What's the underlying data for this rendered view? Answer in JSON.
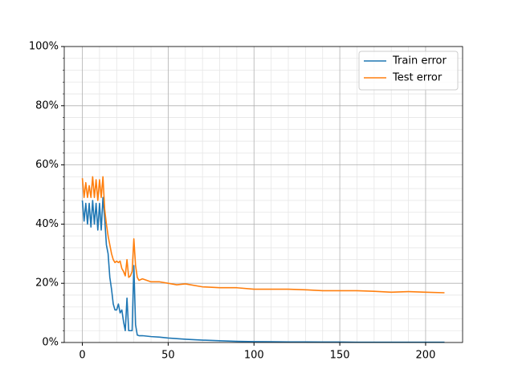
{
  "chart_data": {
    "type": "line",
    "x": [
      0,
      1,
      2,
      3,
      4,
      5,
      6,
      7,
      8,
      9,
      10,
      11,
      12,
      13,
      14,
      15,
      16,
      17,
      18,
      19,
      20,
      21,
      22,
      23,
      24,
      25,
      26,
      27,
      28,
      29,
      30,
      31,
      32,
      33,
      35,
      40,
      45,
      50,
      55,
      60,
      70,
      80,
      90,
      100,
      110,
      120,
      130,
      140,
      150,
      160,
      170,
      180,
      190,
      200,
      211
    ],
    "series": [
      {
        "name": "Train error",
        "color": "#1f77b4",
        "values": [
          48,
          41,
          47,
          40,
          47,
          39,
          48,
          40,
          47,
          38,
          47,
          38,
          49,
          42,
          33,
          30,
          22,
          18,
          13,
          11,
          11,
          13,
          10,
          11,
          7,
          4,
          15,
          4,
          4,
          4,
          26,
          6,
          2.5,
          2.3,
          2.3,
          2,
          1.8,
          1.5,
          1.3,
          1.1,
          0.8,
          0.6,
          0.4,
          0.3,
          0.25,
          0.2,
          0.2,
          0.15,
          0.15,
          0.1,
          0.1,
          0.1,
          0.1,
          0.1,
          0.1
        ]
      },
      {
        "name": "Test error",
        "color": "#ff7f0e",
        "values": [
          55.5,
          49,
          54,
          49,
          53,
          49,
          56,
          49,
          55,
          48,
          55,
          49,
          56,
          45,
          40,
          36,
          33,
          30,
          28,
          27,
          27.5,
          27,
          27.5,
          25,
          24,
          22.5,
          28,
          22,
          22.5,
          24,
          35,
          26,
          22,
          21,
          21.5,
          20.5,
          20.5,
          20,
          19.5,
          19.8,
          18.8,
          18.5,
          18.5,
          18,
          18,
          18,
          17.8,
          17.5,
          17.5,
          17.5,
          17.3,
          17,
          17.2,
          17,
          16.8
        ]
      }
    ],
    "xlim": [
      -10.55,
      221.55
    ],
    "xticks": [
      0,
      50,
      100,
      150,
      200
    ],
    "ylim": [
      0,
      100
    ],
    "yticks": [
      {
        "value": 0,
        "label": "0%"
      },
      {
        "value": 20,
        "label": "20%"
      },
      {
        "value": 40,
        "label": "40%"
      },
      {
        "value": 60,
        "label": "60%"
      },
      {
        "value": 80,
        "label": "80%"
      },
      {
        "value": 100,
        "label": "100%"
      }
    ],
    "grid": true,
    "minor_grid": true,
    "legend": "upper right"
  }
}
